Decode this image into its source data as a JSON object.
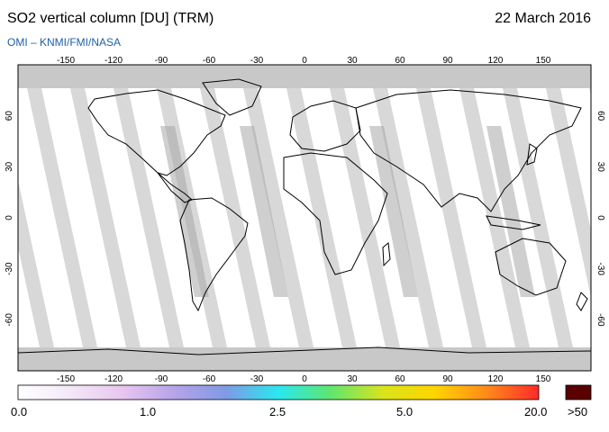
{
  "header": {
    "title": "SO2 vertical column [DU] (TRM)",
    "date": "22 March 2016",
    "credit": "OMI  –  KNMI/FMI/NASA"
  },
  "map": {
    "lon_ticks": [
      "-150",
      "-120",
      "-90",
      "-60",
      "-30",
      "0",
      "30",
      "60",
      "90",
      "120",
      "150"
    ],
    "lat_ticks": [
      "60",
      "30",
      "0",
      "-30",
      "-60"
    ],
    "colors": {
      "no_data": "#c8c8c8",
      "swath_dark": "#a6a6a6",
      "swath_light": "#d4d4d4",
      "land_outline": "#000000"
    }
  },
  "colorbar": {
    "labels": [
      "0.0",
      "1.0",
      "2.5",
      "5.0",
      "20.0"
    ],
    "over_label": ">50",
    "over_color": "#5a0000",
    "stops": [
      "#ffffff",
      "#f4e8f8",
      "#e8c6ef",
      "#b7a3e8",
      "#7f9ae6",
      "#29e8f0",
      "#5fe66f",
      "#d8e41d",
      "#ffd500",
      "#ff8a1a",
      "#ff2a2a"
    ]
  }
}
